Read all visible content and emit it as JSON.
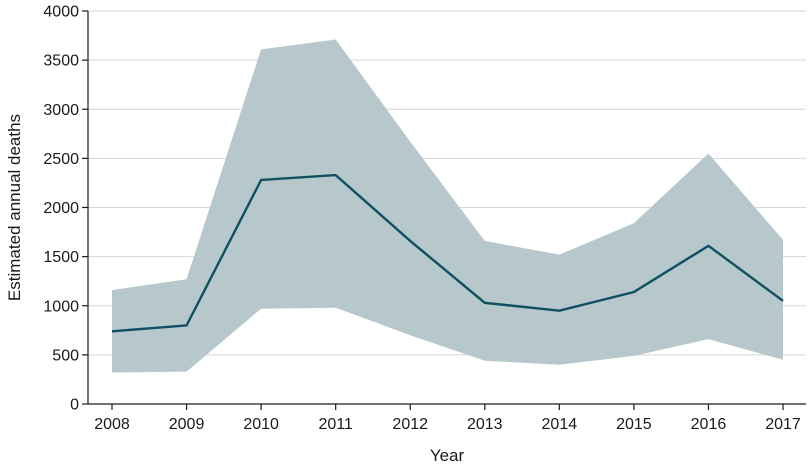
{
  "chart_data": {
    "type": "area",
    "title": "",
    "xlabel": "Year",
    "ylabel": "Estimated annual deaths",
    "x": [
      2008,
      2009,
      2010,
      2011,
      2012,
      2013,
      2014,
      2015,
      2016,
      2017
    ],
    "xticks": [
      "2008",
      "2009",
      "2010",
      "2011",
      "2012",
      "2013",
      "2014",
      "2015",
      "2016",
      "2017"
    ],
    "ylim": [
      0,
      4000
    ],
    "yticks": [
      0,
      500,
      1000,
      1500,
      2000,
      2500,
      3000,
      3500,
      4000
    ],
    "grid": true,
    "series": [
      {
        "values": [
          740,
          800,
          2280,
          2330,
          1660,
          1030,
          950,
          1140,
          1610,
          1050
        ],
        "lower": [
          320,
          330,
          970,
          980,
          700,
          440,
          400,
          490,
          660,
          450
        ],
        "upper": [
          1160,
          1270,
          3610,
          3710,
          2670,
          1660,
          1520,
          1840,
          2550,
          1670
        ]
      }
    ],
    "colors": {
      "band": "#b7c8cd",
      "line": "#0f5060"
    }
  }
}
